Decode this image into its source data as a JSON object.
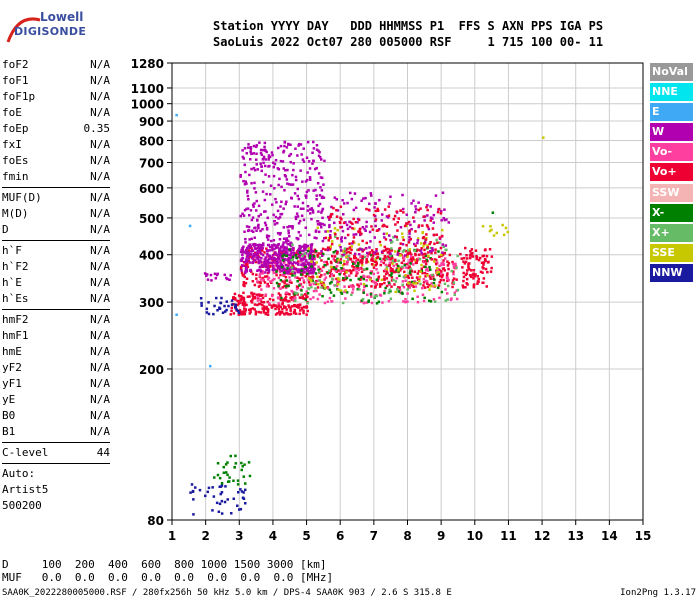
{
  "logo": {
    "line1": "Lowell",
    "line2": "DIGISONDE"
  },
  "header": {
    "labels": "Station YYYY DAY   DDD HHMMSS P1  FFS S AXN PPS IGA PS",
    "values": "SaoLuis 2022 Oct07 280 005000 RSF     1 715 100 00- 11"
  },
  "params": {
    "group1": [
      {
        "name": "foF2",
        "value": "N/A"
      },
      {
        "name": "foF1",
        "value": "N/A"
      },
      {
        "name": "foF1p",
        "value": "N/A"
      },
      {
        "name": "foE",
        "value": "N/A"
      },
      {
        "name": "foEp",
        "value": "0.35"
      },
      {
        "name": "fxI",
        "value": "N/A"
      },
      {
        "name": "foEs",
        "value": "N/A"
      },
      {
        "name": "fmin",
        "value": "N/A"
      }
    ],
    "group2": [
      {
        "name": "MUF(D)",
        "value": "N/A"
      },
      {
        "name": "M(D)",
        "value": "N/A"
      },
      {
        "name": "D",
        "value": "N/A"
      }
    ],
    "group3": [
      {
        "name": "h`F",
        "value": "N/A"
      },
      {
        "name": "h`F2",
        "value": "N/A"
      },
      {
        "name": "h`E",
        "value": "N/A"
      },
      {
        "name": "h`Es",
        "value": "N/A"
      }
    ],
    "group4": [
      {
        "name": "hmF2",
        "value": "N/A"
      },
      {
        "name": "hmF1",
        "value": "N/A"
      },
      {
        "name": "hmE",
        "value": "N/A"
      },
      {
        "name": "yF2",
        "value": "N/A"
      },
      {
        "name": "yF1",
        "value": "N/A"
      },
      {
        "name": "yE",
        "value": "N/A"
      },
      {
        "name": "B0",
        "value": "N/A"
      },
      {
        "name": "B1",
        "value": "N/A"
      }
    ],
    "clevel": {
      "name": "C-level",
      "value": "44"
    },
    "auto": [
      "Auto:",
      "Artist5",
      "500200"
    ]
  },
  "legend": [
    {
      "label": "NoVal",
      "color": "#999999"
    },
    {
      "label": "NNE",
      "color": "#00e5ee"
    },
    {
      "label": "E",
      "color": "#3fa9f5"
    },
    {
      "label": "W",
      "color": "#b000b0"
    },
    {
      "label": "Vo-",
      "color": "#ff3fa0"
    },
    {
      "label": "Vo+",
      "color": "#ee0033"
    },
    {
      "label": "SSW",
      "color": "#f4b4b4"
    },
    {
      "label": "X-",
      "color": "#008000"
    },
    {
      "label": "X+",
      "color": "#66bb66"
    },
    {
      "label": "SSE",
      "color": "#c8c800"
    },
    {
      "label": "NNW",
      "color": "#1a1aa0"
    }
  ],
  "distance": {
    "d_label": "D     100  200  400  600  800 1000 1500 3000 [km]",
    "muf_label": "MUF   0.0  0.0  0.0  0.0  0.0  0.0  0.0  0.0 [MHz]"
  },
  "footer": {
    "left": "SAA0K_2022280005000.RSF / 280fx256h 50 kHz 5.0 km / DPS-4 SAA0K 903 / 2.6 S 315.8 E",
    "right": "Ion2Png 1.3.17"
  },
  "chart_data": {
    "type": "scatter",
    "x_ticks": [
      1,
      2,
      3,
      4,
      5,
      6,
      7,
      8,
      9,
      10,
      11,
      12,
      13,
      14,
      15
    ],
    "y_ticks": [
      80,
      200,
      300,
      400,
      500,
      600,
      700,
      800,
      900,
      1000,
      1100,
      1280
    ],
    "xlim": [
      1,
      15
    ],
    "ylim": [
      80,
      1280
    ],
    "y_scale": "log",
    "grid": true,
    "legend_position": "right",
    "clusters": [
      {
        "series": "Vo+",
        "x": [
          3.0,
          10.5
        ],
        "y": [
          330,
          420
        ],
        "density": 600
      },
      {
        "series": "Vo+",
        "x": [
          2.7,
          5.0
        ],
        "y": [
          280,
          320
        ],
        "density": 220
      },
      {
        "series": "Vo-",
        "x": [
          3.5,
          9.5
        ],
        "y": [
          300,
          400
        ],
        "density": 260
      },
      {
        "series": "W",
        "x": [
          3.0,
          5.2
        ],
        "y": [
          360,
          430
        ],
        "density": 380
      },
      {
        "series": "W",
        "x": [
          3.0,
          5.5
        ],
        "y": [
          430,
          800
        ],
        "density": 320
      },
      {
        "series": "X-",
        "x": [
          4.0,
          9.0
        ],
        "y": [
          300,
          420
        ],
        "density": 140
      },
      {
        "series": "X+",
        "x": [
          4.5,
          9.5
        ],
        "y": [
          300,
          450
        ],
        "density": 90
      },
      {
        "series": "SSE",
        "x": [
          5.0,
          9.0
        ],
        "y": [
          320,
          480
        ],
        "density": 90
      },
      {
        "series": "W",
        "x": [
          5.3,
          9.2
        ],
        "y": [
          400,
          590
        ],
        "density": 160
      },
      {
        "series": "Vo+",
        "x": [
          5.5,
          9.0
        ],
        "y": [
          380,
          540
        ],
        "density": 160
      },
      {
        "series": "NNW",
        "x": [
          1.5,
          3.2
        ],
        "y": [
          83,
          100
        ],
        "density": 40
      },
      {
        "series": "X-",
        "x": [
          2.2,
          3.3
        ],
        "y": [
          100,
          120
        ],
        "density": 30
      },
      {
        "series": "NNW",
        "x": [
          1.8,
          3.0
        ],
        "y": [
          280,
          310
        ],
        "density": 30
      },
      {
        "series": "W",
        "x": [
          1.9,
          2.8
        ],
        "y": [
          345,
          360
        ],
        "density": 15
      },
      {
        "series": "SSE",
        "x": [
          10.2,
          11.0
        ],
        "y": [
          450,
          500
        ],
        "density": 10
      }
    ],
    "points": [
      {
        "series": "E",
        "x": 1.1,
        "y": 940
      },
      {
        "series": "E",
        "x": 1.5,
        "y": 480
      },
      {
        "series": "E",
        "x": 1.1,
        "y": 280
      },
      {
        "series": "E",
        "x": 2.1,
        "y": 205
      },
      {
        "series": "SSE",
        "x": 12.0,
        "y": 820
      },
      {
        "series": "X-",
        "x": 10.5,
        "y": 520
      }
    ]
  }
}
